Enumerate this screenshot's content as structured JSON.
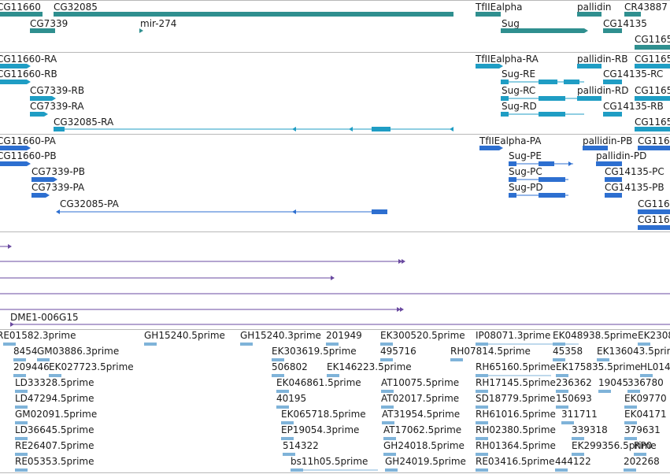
{
  "colors": {
    "gene": "#2f8f8f",
    "mrna": "#1f9dc4",
    "protein": "#2d6fd0",
    "purple": "#6a4aa0",
    "est": "#7fb3d9",
    "separator": "#b8b8b8",
    "text": "#1a1a1a"
  },
  "tracks": {
    "genes": {
      "labels": [
        "CG11660",
        "CG32085",
        "CG7339",
        "mir-274",
        "TfIIEalpha",
        "Sug",
        "pallidin",
        "CG14135",
        "CR43887",
        "CG1165"
      ]
    },
    "mrna": {
      "labels": [
        "CG11660-RA",
        "CG11660-RB",
        "CG7339-RB",
        "CG7339-RA",
        "CG32085-RA",
        "TfIIEalpha-RA",
        "Sug-RE",
        "Sug-RC",
        "Sug-RD",
        "pallidin-RB",
        "pallidin-RD",
        "CG14135-RC",
        "CG14135-RB",
        "CG1165",
        "CG1165",
        "CG1165"
      ]
    },
    "protein": {
      "labels": [
        "CG11660-PA",
        "CG11660-PB",
        "CG7339-PB",
        "CG7339-PA",
        "CG32085-PA",
        "TfIIEalpha-PA",
        "Sug-PE",
        "Sug-PC",
        "Sug-PD",
        "pallidin-PB",
        "pallidin-PD",
        "CG14135-PC",
        "CG14135-PB",
        "CG116",
        "CG116",
        "CG116"
      ]
    },
    "clones": {
      "labels": [
        "DME1-006G15"
      ]
    },
    "est": {
      "labels": [
        "RE01582.3prime",
        "GH15240.5prime",
        "GH15240.3prime",
        "201949",
        "EK300520.5prime",
        "IP08071.3prime",
        "EK048938.5prime",
        "EK2308",
        "8454",
        "GM03886.3prime",
        "EK303619.5prime",
        "495716",
        "RH07814.5prime",
        "45358",
        "EK136043.5prime",
        "209446",
        "EK027723.5prime",
        "506802",
        "EK146223.5prime",
        "RH65160.5prime",
        "EK175835.5prime",
        "HL014",
        "LD33328.5prime",
        "EK046861.5prime",
        "AT10075.5prime",
        "RH17145.5prime",
        "236362",
        "19045",
        "336780",
        "LD47294.5prime",
        "40195",
        "AT02017.5prime",
        "SD18779.5prime",
        "150693",
        "EK09770",
        "GM02091.5prime",
        "EK065718.5prime",
        "AT31954.5prime",
        "RH61016.5prime",
        "311711",
        "EK04171",
        "LD36645.5prime",
        "EP19054.3prime",
        "AT17062.5prime",
        "RH02380.5prime",
        "339318",
        "379631",
        "RE26407.5prime",
        "514322",
        "GH24018.5prime",
        "RH01364.5prime",
        "EK299356.5prime",
        "RP0",
        "RE05353.5prime",
        "bs11h05.5prime",
        "GH24019.5prime",
        "RE03416.5prime",
        "444122",
        "202268"
      ]
    }
  }
}
